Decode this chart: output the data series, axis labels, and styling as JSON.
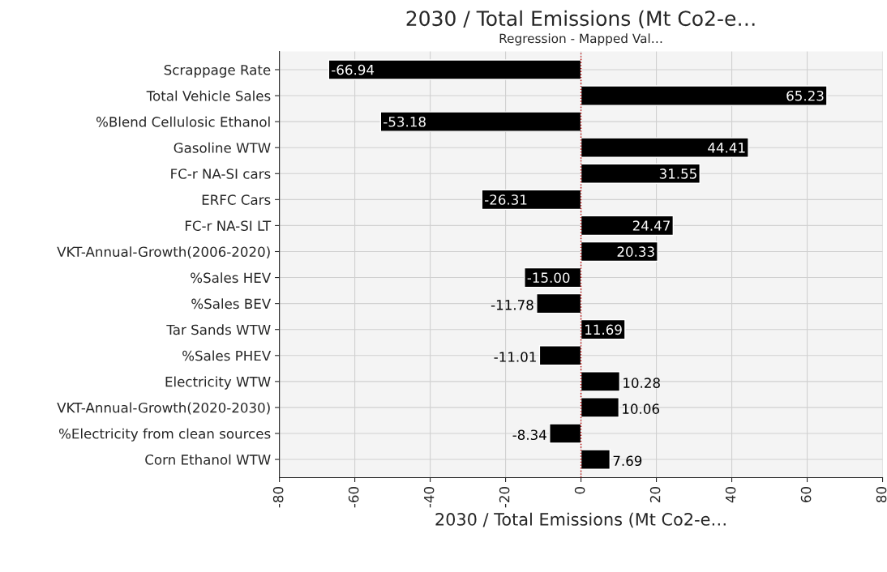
{
  "chart_data": {
    "type": "bar",
    "orientation": "horizontal",
    "title": "2030 / Total Emissions (Mt Co2-e…",
    "subtitle": "Regression - Mapped Val…",
    "xlabel": "2030 / Total Emissions (Mt Co2-e…",
    "categories": [
      "Scrappage Rate",
      "Total Vehicle Sales",
      "%Blend Cellulosic Ethanol",
      "Gasoline WTW",
      "FC-r NA-SI cars",
      "ERFC Cars",
      "FC-r NA-SI LT",
      "VKT-Annual-Growth(2006-2020)",
      "%Sales HEV",
      "%Sales BEV",
      "Tar Sands WTW",
      "%Sales PHEV",
      "Electricity WTW",
      "VKT-Annual-Growth(2020-2030)",
      "%Electricity from clean sources",
      "Corn Ethanol WTW"
    ],
    "values": [
      -66.94,
      65.23,
      -53.18,
      44.41,
      31.55,
      -26.31,
      24.47,
      20.33,
      -15.0,
      -11.78,
      11.69,
      -11.01,
      10.28,
      10.06,
      -8.34,
      7.69
    ],
    "value_labels": [
      "-66.94",
      "65.23",
      "-53.18",
      "44.41",
      "31.55",
      "-26.31",
      "24.47",
      "20.33",
      "-15.00",
      "-11.78",
      "11.69",
      "-11.01",
      "10.28",
      "10.06",
      "-8.34",
      "7.69"
    ],
    "color": "#000000",
    "xlim": [
      -80,
      80
    ],
    "xticks": [
      -80,
      -60,
      -40,
      -20,
      0,
      20,
      40,
      60,
      80
    ],
    "ref_lines": [
      {
        "axis": "x",
        "value": 0,
        "color": "#c00000",
        "line_style": "dotted"
      }
    ],
    "grid": true,
    "legend": false
  }
}
